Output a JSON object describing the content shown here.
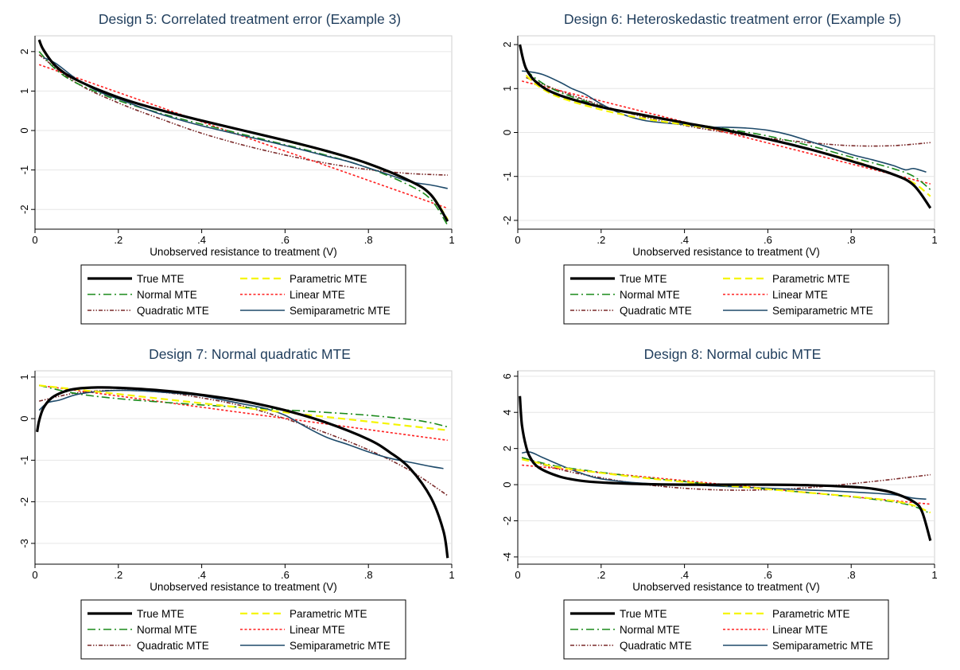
{
  "chart_data": [
    {
      "type": "line",
      "title": "Design 5: Correlated treatment error (Example 3)",
      "xlabel": "Unobserved resistance to treatment (V)",
      "ylabel": "",
      "xlim": [
        0,
        1
      ],
      "ylim": [
        -2.5,
        2.4
      ],
      "xticks": [
        0,
        0.2,
        0.4,
        0.6,
        0.8,
        1
      ],
      "xtick_labels": [
        "0",
        ".2",
        ".4",
        ".6",
        ".8",
        "1"
      ],
      "yticks": [
        -2,
        -1,
        0,
        1,
        2
      ],
      "ytick_labels": [
        "-2",
        "-1",
        "0",
        "1",
        "2"
      ],
      "grid": true,
      "legend_position": "bottom",
      "series": [
        {
          "name": "True MTE",
          "x": [
            0.01,
            0.02,
            0.05,
            0.1,
            0.2,
            0.3,
            0.4,
            0.5,
            0.6,
            0.7,
            0.8,
            0.9,
            0.95,
            0.99
          ],
          "y": [
            2.3,
            2.05,
            1.63,
            1.28,
            0.84,
            0.52,
            0.25,
            0.0,
            -0.25,
            -0.52,
            -0.84,
            -1.28,
            -1.63,
            -2.3
          ]
        },
        {
          "name": "Parametric MTE",
          "x": [
            0.01,
            0.02,
            0.05,
            0.1,
            0.2,
            0.3,
            0.4,
            0.5,
            0.6,
            0.7,
            0.8,
            0.9,
            0.95,
            0.99
          ],
          "y": [
            2.28,
            2.03,
            1.62,
            1.27,
            0.83,
            0.52,
            0.25,
            0.0,
            -0.26,
            -0.53,
            -0.85,
            -1.29,
            -1.62,
            -2.25
          ]
        },
        {
          "name": "Normal MTE",
          "x": [
            0.01,
            0.05,
            0.1,
            0.2,
            0.3,
            0.4,
            0.5,
            0.6,
            0.7,
            0.8,
            0.9,
            0.95,
            0.99
          ],
          "y": [
            2.0,
            1.55,
            1.2,
            0.76,
            0.44,
            0.16,
            -0.1,
            -0.36,
            -0.63,
            -0.95,
            -1.4,
            -1.75,
            -2.4
          ]
        },
        {
          "name": "Linear MTE",
          "x": [
            0.01,
            0.99
          ],
          "y": [
            1.67,
            -1.97
          ]
        },
        {
          "name": "Quadratic MTE",
          "x": [
            0.01,
            0.1,
            0.2,
            0.3,
            0.4,
            0.5,
            0.6,
            0.7,
            0.8,
            0.9,
            0.99
          ],
          "y": [
            1.92,
            1.2,
            0.7,
            0.3,
            -0.07,
            -0.37,
            -0.62,
            -0.83,
            -0.99,
            -1.09,
            -1.13
          ]
        },
        {
          "name": "Semiparametric MTE",
          "x": [
            0.02,
            0.05,
            0.1,
            0.15,
            0.2,
            0.3,
            0.4,
            0.5,
            0.6,
            0.7,
            0.75,
            0.8,
            0.85,
            0.9,
            0.95,
            0.99
          ],
          "y": [
            1.85,
            1.7,
            1.3,
            1.0,
            0.8,
            0.42,
            0.12,
            -0.13,
            -0.38,
            -0.65,
            -0.78,
            -0.95,
            -1.12,
            -1.3,
            -1.38,
            -1.47
          ]
        }
      ]
    },
    {
      "type": "line",
      "title": "Design 6: Heteroskedastic treatment error (Example 5)",
      "xlabel": "Unobserved resistance to treatment (V)",
      "ylabel": "",
      "xlim": [
        0,
        1
      ],
      "ylim": [
        -2.2,
        2.2
      ],
      "xticks": [
        0,
        0.2,
        0.4,
        0.6,
        0.8,
        1
      ],
      "xtick_labels": [
        "0",
        ".2",
        ".4",
        ".6",
        ".8",
        "1"
      ],
      "yticks": [
        -2,
        -1,
        0,
        1,
        2
      ],
      "ytick_labels": [
        "-2",
        "-1",
        "0",
        "1",
        "2"
      ],
      "grid": true,
      "legend_position": "bottom",
      "series": [
        {
          "name": "True MTE",
          "x": [
            0.005,
            0.02,
            0.05,
            0.1,
            0.2,
            0.3,
            0.4,
            0.5,
            0.6,
            0.7,
            0.8,
            0.9,
            0.95,
            0.99
          ],
          "y": [
            2.0,
            1.45,
            1.1,
            0.85,
            0.58,
            0.4,
            0.22,
            0.05,
            -0.15,
            -0.38,
            -0.65,
            -0.95,
            -1.2,
            -1.72
          ]
        },
        {
          "name": "Parametric MTE",
          "x": [
            0.02,
            0.05,
            0.1,
            0.2,
            0.3,
            0.4,
            0.5,
            0.6,
            0.7,
            0.8,
            0.9,
            0.95,
            0.99
          ],
          "y": [
            1.3,
            1.05,
            0.8,
            0.52,
            0.32,
            0.18,
            0.04,
            -0.15,
            -0.38,
            -0.63,
            -0.95,
            -1.15,
            -1.45
          ]
        },
        {
          "name": "Normal MTE",
          "x": [
            0.02,
            0.05,
            0.1,
            0.2,
            0.3,
            0.4,
            0.5,
            0.6,
            0.7,
            0.8,
            0.9,
            0.95,
            0.99
          ],
          "y": [
            1.42,
            1.18,
            0.92,
            0.6,
            0.38,
            0.22,
            0.08,
            -0.08,
            -0.3,
            -0.56,
            -0.82,
            -1.0,
            -1.3
          ]
        },
        {
          "name": "Linear MTE",
          "x": [
            0.01,
            0.99
          ],
          "y": [
            1.17,
            -1.17
          ]
        },
        {
          "name": "Quadratic MTE",
          "x": [
            0.02,
            0.1,
            0.2,
            0.3,
            0.4,
            0.5,
            0.6,
            0.7,
            0.8,
            0.9,
            0.99
          ],
          "y": [
            1.25,
            0.95,
            0.62,
            0.36,
            0.16,
            0.0,
            -0.13,
            -0.23,
            -0.3,
            -0.3,
            -0.23
          ]
        },
        {
          "name": "Semiparametric MTE",
          "x": [
            0.01,
            0.03,
            0.06,
            0.1,
            0.13,
            0.16,
            0.2,
            0.25,
            0.3,
            0.35,
            0.4,
            0.45,
            0.5,
            0.55,
            0.6,
            0.65,
            0.7,
            0.75,
            0.8,
            0.85,
            0.9,
            0.93,
            0.95,
            0.98
          ],
          "y": [
            1.4,
            1.38,
            1.32,
            1.15,
            1.0,
            0.88,
            0.65,
            0.42,
            0.28,
            0.22,
            0.18,
            0.12,
            0.12,
            0.1,
            0.05,
            -0.05,
            -0.2,
            -0.35,
            -0.5,
            -0.62,
            -0.75,
            -0.85,
            -0.82,
            -0.9
          ]
        }
      ]
    },
    {
      "type": "line",
      "title": "Design 7: Normal quadratic MTE",
      "xlabel": "Unobserved resistance to treatment (V)",
      "ylabel": "",
      "xlim": [
        0,
        1
      ],
      "ylim": [
        -3.5,
        1.15
      ],
      "xticks": [
        0,
        0.2,
        0.4,
        0.6,
        0.8,
        1
      ],
      "xtick_labels": [
        "0",
        ".2",
        ".4",
        ".6",
        ".8",
        "1"
      ],
      "yticks": [
        -3,
        -2,
        -1,
        0,
        1
      ],
      "ytick_labels": [
        "-3",
        "-2",
        "-1",
        "0",
        "1"
      ],
      "grid": true,
      "legend_position": "bottom",
      "series": [
        {
          "name": "True MTE",
          "x": [
            0.005,
            0.01,
            0.02,
            0.04,
            0.07,
            0.1,
            0.15,
            0.2,
            0.3,
            0.4,
            0.5,
            0.6,
            0.7,
            0.8,
            0.85,
            0.9,
            0.95,
            0.98,
            0.99
          ],
          "y": [
            -0.32,
            -0.05,
            0.25,
            0.5,
            0.65,
            0.72,
            0.75,
            0.74,
            0.68,
            0.57,
            0.42,
            0.2,
            -0.1,
            -0.5,
            -0.8,
            -1.2,
            -1.9,
            -2.7,
            -3.35
          ]
        },
        {
          "name": "Parametric MTE",
          "x": [
            0.01,
            0.99
          ],
          "y": [
            0.8,
            -0.28
          ]
        },
        {
          "name": "Normal MTE",
          "x": [
            0.01,
            0.1,
            0.2,
            0.3,
            0.4,
            0.5,
            0.6,
            0.7,
            0.8,
            0.9,
            0.95,
            0.99
          ],
          "y": [
            0.8,
            0.6,
            0.48,
            0.4,
            0.33,
            0.27,
            0.21,
            0.15,
            0.08,
            -0.02,
            -0.1,
            -0.2
          ]
        },
        {
          "name": "Linear MTE",
          "x": [
            0.01,
            0.99
          ],
          "y": [
            0.8,
            -0.52
          ]
        },
        {
          "name": "Quadratic MTE",
          "x": [
            0.01,
            0.1,
            0.2,
            0.3,
            0.4,
            0.5,
            0.6,
            0.7,
            0.8,
            0.9,
            0.99
          ],
          "y": [
            0.42,
            0.62,
            0.68,
            0.64,
            0.5,
            0.3,
            0.0,
            -0.35,
            -0.75,
            -1.25,
            -1.85
          ]
        },
        {
          "name": "Semiparametric MTE",
          "x": [
            0.01,
            0.03,
            0.06,
            0.1,
            0.15,
            0.2,
            0.25,
            0.3,
            0.35,
            0.4,
            0.45,
            0.5,
            0.55,
            0.6,
            0.65,
            0.7,
            0.75,
            0.8,
            0.85,
            0.9,
            0.95,
            0.98
          ],
          "y": [
            0.2,
            0.38,
            0.45,
            0.58,
            0.65,
            0.68,
            0.67,
            0.64,
            0.6,
            0.55,
            0.45,
            0.35,
            0.25,
            0.08,
            -0.2,
            -0.45,
            -0.62,
            -0.8,
            -0.95,
            -1.05,
            -1.15,
            -1.2
          ]
        }
      ]
    },
    {
      "type": "line",
      "title": "Design 8: Normal cubic MTE",
      "xlabel": "Unobserved resistance to treatment (V)",
      "ylabel": "",
      "xlim": [
        0,
        1
      ],
      "ylim": [
        -4.4,
        6.3
      ],
      "xticks": [
        0,
        0.2,
        0.4,
        0.6,
        0.8,
        1
      ],
      "xtick_labels": [
        "0",
        ".2",
        ".4",
        ".6",
        ".8",
        "1"
      ],
      "yticks": [
        -4,
        -2,
        0,
        2,
        4,
        6
      ],
      "ytick_labels": [
        "-4",
        "-2",
        "0",
        "2",
        "4",
        "6"
      ],
      "grid": true,
      "legend_position": "bottom",
      "series": [
        {
          "name": "True MTE",
          "x": [
            0.005,
            0.01,
            0.02,
            0.03,
            0.05,
            0.1,
            0.15,
            0.2,
            0.3,
            0.4,
            0.5,
            0.6,
            0.7,
            0.8,
            0.85,
            0.9,
            0.95,
            0.97,
            0.99
          ],
          "y": [
            4.9,
            3.3,
            2.1,
            1.5,
            0.95,
            0.45,
            0.22,
            0.12,
            0.03,
            0.0,
            0.0,
            0.0,
            -0.03,
            -0.12,
            -0.22,
            -0.45,
            -0.95,
            -1.5,
            -3.1
          ]
        },
        {
          "name": "Parametric MTE",
          "x": [
            0.01,
            0.05,
            0.1,
            0.2,
            0.3,
            0.4,
            0.5,
            0.6,
            0.7,
            0.8,
            0.9,
            0.95,
            0.99
          ],
          "y": [
            1.4,
            1.2,
            0.95,
            0.65,
            0.38,
            0.15,
            -0.05,
            -0.25,
            -0.45,
            -0.65,
            -0.9,
            -1.15,
            -1.55
          ]
        },
        {
          "name": "Normal MTE",
          "x": [
            0.01,
            0.05,
            0.1,
            0.2,
            0.3,
            0.4,
            0.5,
            0.6,
            0.7,
            0.8,
            0.9,
            0.95,
            0.99
          ],
          "y": [
            1.5,
            1.25,
            1.0,
            0.68,
            0.4,
            0.17,
            -0.05,
            -0.25,
            -0.45,
            -0.67,
            -0.95,
            -1.2,
            -1.6
          ]
        },
        {
          "name": "Linear MTE",
          "x": [
            0.01,
            0.99
          ],
          "y": [
            1.08,
            -1.08
          ]
        },
        {
          "name": "Quadratic MTE",
          "x": [
            0.01,
            0.1,
            0.2,
            0.3,
            0.4,
            0.5,
            0.6,
            0.7,
            0.8,
            0.9,
            0.99
          ],
          "y": [
            1.5,
            0.85,
            0.38,
            0.02,
            -0.2,
            -0.3,
            -0.28,
            -0.16,
            0.05,
            0.3,
            0.55
          ]
        },
        {
          "name": "Semiparametric MTE",
          "x": [
            0.01,
            0.03,
            0.06,
            0.1,
            0.15,
            0.2,
            0.3,
            0.4,
            0.5,
            0.6,
            0.7,
            0.8,
            0.9,
            0.95,
            0.98
          ],
          "y": [
            1.75,
            1.8,
            1.5,
            1.1,
            0.65,
            0.32,
            0.08,
            0.0,
            -0.1,
            -0.2,
            -0.3,
            -0.4,
            -0.55,
            -0.75,
            -0.8
          ]
        }
      ]
    }
  ],
  "series_styles": {
    "True MTE": {
      "color": "#000000",
      "dash": ""
    },
    "Parametric MTE": {
      "color": "#f5f500",
      "dash": "9,5"
    },
    "Normal MTE": {
      "color": "#1a8a1a",
      "dash": "10,4,2,4"
    },
    "Linear MTE": {
      "color": "#ff2020",
      "dash": "3,2.5"
    },
    "Quadratic MTE": {
      "color": "#7a2a2a",
      "dash": "5,2,1.5,2,1.5,2"
    },
    "Semiparametric MTE": {
      "color": "#1e4a6a",
      "dash": ""
    }
  },
  "legend_order": [
    "True MTE",
    "Parametric MTE",
    "Normal MTE",
    "Linear MTE",
    "Quadratic MTE",
    "Semiparametric MTE"
  ]
}
